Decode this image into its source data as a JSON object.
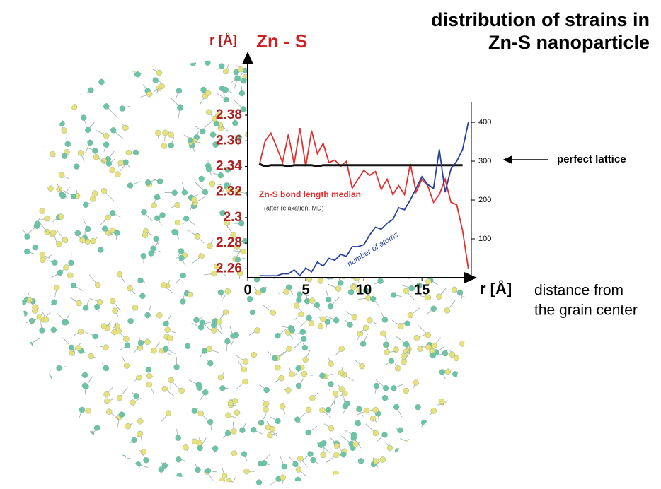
{
  "chart_data": {
    "type": "line",
    "title": [
      "distribution of strains in",
      "Zn-S nanoparticle"
    ],
    "y_label": "r [Å]",
    "y_title": "Zn - S",
    "x_label": "r [Å]",
    "x_note": [
      "distance from",
      "the grain center"
    ],
    "annotations": {
      "lattice": "perfect lattice",
      "relaxation": "(after relaxation, MD)"
    },
    "x": [
      1,
      1.5,
      2,
      2.5,
      3,
      3.5,
      4,
      4.5,
      5,
      5.5,
      6,
      6.5,
      7,
      7.5,
      8,
      8.5,
      9,
      9.5,
      10,
      10.5,
      11,
      11.5,
      12,
      12.5,
      13,
      13.5,
      14,
      14.5,
      15,
      15.5,
      16,
      16.5,
      17,
      17.5,
      18,
      18.5,
      19
    ],
    "series": [
      {
        "name": "Zn-S bond length median",
        "color": "#e03030",
        "values": [
          2.341,
          2.36,
          2.366,
          2.355,
          2.343,
          2.365,
          2.342,
          2.37,
          2.34,
          2.368,
          2.35,
          2.358,
          2.343,
          2.345,
          2.34,
          2.344,
          2.323,
          2.33,
          2.337,
          2.333,
          2.336,
          2.322,
          2.33,
          2.318,
          2.325,
          2.318,
          2.342,
          2.32,
          2.33,
          2.325,
          2.312,
          2.318,
          2.33,
          2.312,
          2.31,
          2.29,
          2.26
        ]
      },
      {
        "name": "perfect lattice",
        "color": "#111111",
        "values": [
          2.342,
          2.34,
          2.341,
          2.341,
          2.341,
          2.34,
          2.341,
          2.341,
          2.341,
          2.341,
          2.34,
          2.341,
          2.341,
          2.341,
          2.341,
          2.341,
          2.341,
          2.341,
          2.341,
          2.341,
          2.341,
          2.341,
          2.341,
          2.341,
          2.341,
          2.341,
          2.341,
          2.341,
          2.341,
          2.341,
          2.341,
          2.341,
          2.341,
          2.341,
          2.341,
          2.341,
          null
        ]
      },
      {
        "name": "number of atoms",
        "color": "#2840a0",
        "axis": "y2",
        "values": [
          5,
          5,
          5,
          5,
          10,
          10,
          20,
          5,
          25,
          15,
          40,
          30,
          50,
          45,
          60,
          55,
          80,
          80,
          85,
          110,
          130,
          125,
          140,
          150,
          180,
          175,
          200,
          230,
          260,
          240,
          230,
          330,
          220,
          280,
          300,
          330,
          400
        ]
      }
    ],
    "xlim": [
      0,
      19.5
    ],
    "xticks": [
      0,
      5,
      10,
      15
    ],
    "ylim": [
      2.253,
      2.39
    ],
    "yticks": [
      2.26,
      2.28,
      2.3,
      2.32,
      2.34,
      2.36,
      2.38
    ],
    "y2lim": [
      0,
      451
    ],
    "y2ticks": [
      100,
      200,
      300,
      400
    ]
  }
}
